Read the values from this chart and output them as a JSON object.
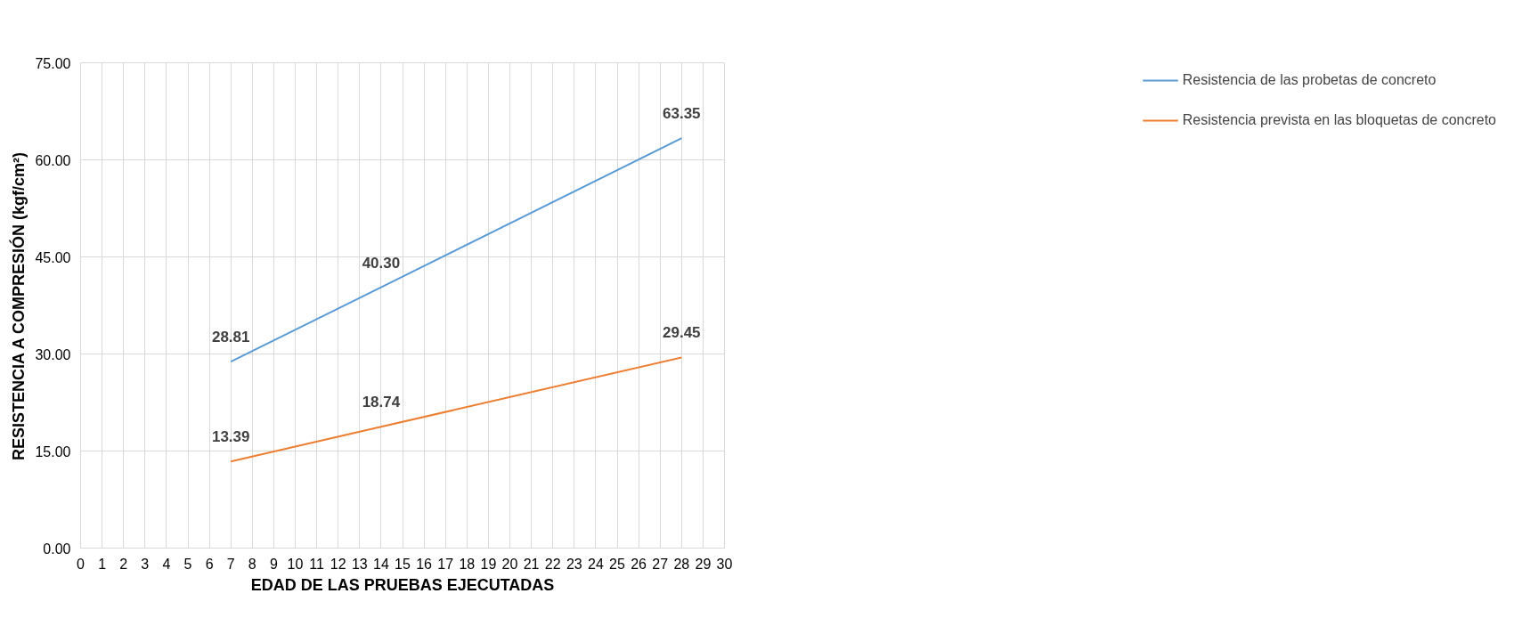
{
  "chart_data": {
    "type": "line",
    "xlabel": "EDAD DE LAS PRUEBAS EJECUTADAS",
    "ylabel": "RESISTENCIA A COMPRESIÓN (kgf/cm²)",
    "x": [
      7,
      14,
      28
    ],
    "series": [
      {
        "name": "Resistencia de las probetas de concreto",
        "color": "#5b9bd5",
        "values": [
          28.81,
          40.3,
          63.35
        ],
        "value_labels": [
          "28.81",
          "40.30",
          "63.35"
        ]
      },
      {
        "name": "Resistencia prevista en las bloquetas de concreto",
        "color": "#ed7d31",
        "values": [
          13.39,
          18.74,
          29.45
        ],
        "value_labels": [
          "13.39",
          "18.74",
          "29.45"
        ]
      }
    ],
    "xlim": [
      0,
      30
    ],
    "xticks": [
      0,
      1,
      2,
      3,
      4,
      5,
      6,
      7,
      8,
      9,
      10,
      11,
      12,
      13,
      14,
      15,
      16,
      17,
      18,
      19,
      20,
      21,
      22,
      23,
      24,
      25,
      26,
      27,
      28,
      29,
      30
    ],
    "ylim": [
      0,
      75
    ],
    "yticks": [
      {
        "value": 0,
        "label": "0.00"
      },
      {
        "value": 15,
        "label": "15.00"
      },
      {
        "value": 30,
        "label": "30.00"
      },
      {
        "value": 45,
        "label": "45.00"
      },
      {
        "value": 60,
        "label": "60.00"
      },
      {
        "value": 75,
        "label": "75.00"
      }
    ],
    "grid": true,
    "legend": "right",
    "marker": "none",
    "line_style": "solid"
  }
}
